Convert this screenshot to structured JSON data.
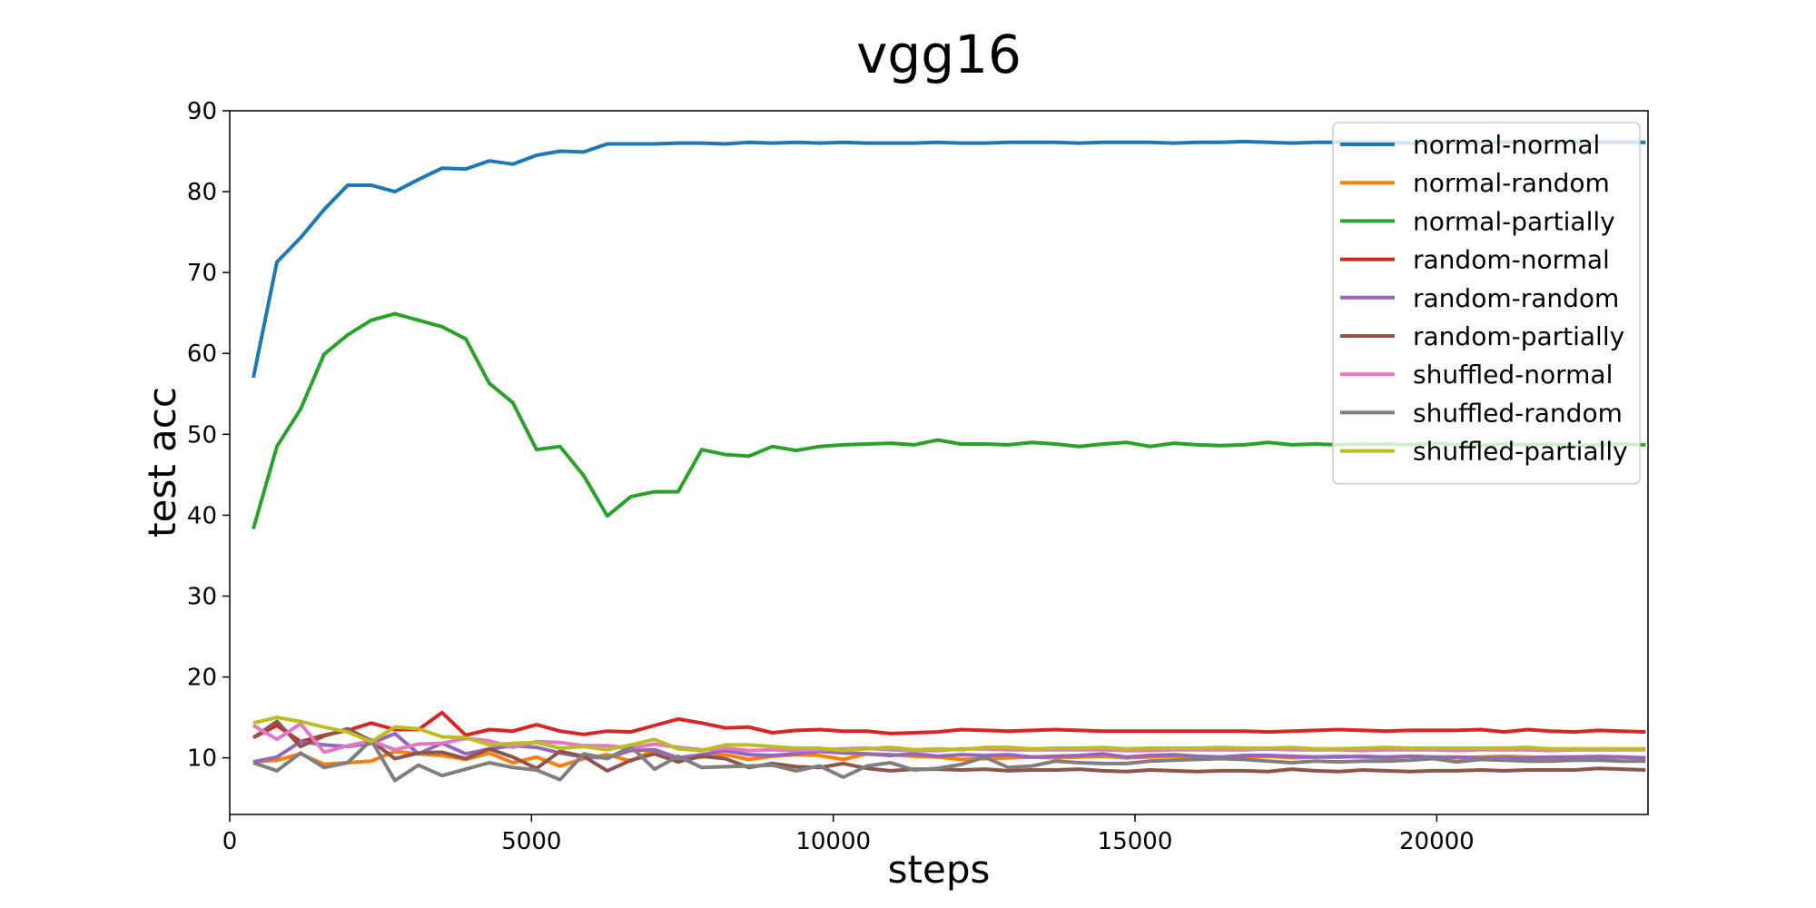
{
  "chart_data": {
    "type": "line",
    "title": "vgg16",
    "xlabel": "steps",
    "ylabel": "test acc",
    "xlim": [
      0,
      23500
    ],
    "ylim": [
      3,
      90
    ],
    "xticks": [
      0,
      5000,
      10000,
      15000,
      20000
    ],
    "yticks": [
      10,
      20,
      30,
      40,
      50,
      60,
      70,
      80,
      90
    ],
    "grid": false,
    "legend_position": "upper right",
    "x": [
      391,
      782,
      1173,
      1564,
      1955,
      2346,
      2737,
      3128,
      3519,
      3910,
      4301,
      4692,
      5083,
      5474,
      5865,
      6256,
      6647,
      7038,
      7429,
      7820,
      8211,
      8602,
      8993,
      9384,
      9775,
      10166,
      10557,
      10948,
      11339,
      11730,
      12121,
      12512,
      12903,
      13294,
      13685,
      14076,
      14467,
      14858,
      15249,
      15640,
      16031,
      16422,
      16813,
      17204,
      17595,
      17986,
      18377,
      18768,
      19159,
      19550,
      19941,
      20332,
      20723,
      21114,
      21505,
      21896,
      22287,
      22678,
      23069,
      23460
    ],
    "series": [
      {
        "name": "normal-normal",
        "color": "#1f77b4",
        "values": [
          57,
          71.3,
          74.3,
          77.8,
          80.8,
          80.8,
          80,
          81.5,
          82.9,
          82.8,
          83.8,
          83.4,
          84.5,
          85,
          84.9,
          85.9,
          85.9,
          85.9,
          86,
          86,
          85.9,
          86.1,
          86,
          86.1,
          86,
          86.1,
          86,
          86,
          86,
          86.1,
          86,
          86,
          86.1,
          86.1,
          86.1,
          86,
          86.1,
          86.1,
          86.1,
          86,
          86.1,
          86.1,
          86.2,
          86.1,
          86,
          86.1,
          86.1,
          86.1,
          86.1,
          86,
          86.1,
          86.1,
          86.1,
          86.1,
          86.1,
          86.1,
          86.1,
          86.1,
          86.1,
          86.1
        ]
      },
      {
        "name": "normal-random",
        "color": "#ff7f0e",
        "values": [
          9.5,
          9.7,
          10.5,
          9.2,
          9.4,
          9.6,
          10.8,
          10.5,
          10.3,
          9.8,
          10.6,
          9.4,
          10.1,
          9,
          9.9,
          10.4,
          9.6,
          11,
          10,
          10.1,
          10.4,
          9.8,
          10.2,
          10.4,
          10.3,
          9.8,
          10.5,
          10.4,
          10.2,
          10.1,
          9.8,
          9.9,
          10,
          10.1,
          10,
          10.1,
          10.2,
          10,
          10.1,
          10.2,
          10.1,
          10,
          10.1,
          10.2,
          10,
          10.1,
          10.2,
          10.1,
          10,
          10.2,
          10.1,
          10,
          10.1,
          10.2,
          10.1,
          10,
          10.1,
          10.2,
          10.1,
          10
        ]
      },
      {
        "name": "normal-partially",
        "color": "#2ca02c",
        "values": [
          38.3,
          48.5,
          53.1,
          59.9,
          62.3,
          64.1,
          64.9,
          64.1,
          63.3,
          61.8,
          56.3,
          53.9,
          48.1,
          48.5,
          44.9,
          39.9,
          42.3,
          42.9,
          42.9,
          48.1,
          47.5,
          47.3,
          48.5,
          48,
          48.5,
          48.7,
          48.8,
          48.9,
          48.7,
          49.3,
          48.8,
          48.8,
          48.7,
          49,
          48.8,
          48.5,
          48.8,
          49,
          48.5,
          48.9,
          48.7,
          48.6,
          48.7,
          49,
          48.7,
          48.8,
          48.7,
          48.8,
          48.8,
          48.7,
          48.9,
          48.7,
          48.6,
          48.8,
          48.7,
          48.8,
          48.6,
          48.7,
          48.8,
          48.7
        ]
      },
      {
        "name": "random-normal",
        "color": "#d62728",
        "values": [
          12.5,
          14,
          12,
          12.8,
          13.4,
          14.3,
          13.5,
          13.5,
          15.6,
          12.8,
          13.5,
          13.3,
          14.1,
          13.3,
          12.9,
          13.3,
          13.2,
          14,
          14.8,
          14.3,
          13.7,
          13.8,
          13.1,
          13.4,
          13.5,
          13.3,
          13.3,
          13,
          13.1,
          13.2,
          13.5,
          13.4,
          13.3,
          13.4,
          13.5,
          13.4,
          13.3,
          13.3,
          13.3,
          13.3,
          13.3,
          13.3,
          13.3,
          13.2,
          13.3,
          13.4,
          13.5,
          13.4,
          13.3,
          13.4,
          13.4,
          13.4,
          13.5,
          13.2,
          13.5,
          13.3,
          13.2,
          13.4,
          13.3,
          13.2
        ]
      },
      {
        "name": "random-random",
        "color": "#9467bd",
        "values": [
          9.5,
          10.1,
          12,
          11.6,
          11.4,
          11.8,
          13,
          10.5,
          11.8,
          10.5,
          11.1,
          11.5,
          11.3,
          10.6,
          10.1,
          10,
          10.9,
          11,
          10,
          10.4,
          10.9,
          10.4,
          10.3,
          10.5,
          10.8,
          10.6,
          10.5,
          10.3,
          10.5,
          10.2,
          10.4,
          10.3,
          10.4,
          10.1,
          10.2,
          10.3,
          10.5,
          10.1,
          10.3,
          10.4,
          10.2,
          10.1,
          10.3,
          10.3,
          10.2,
          10.1,
          10.1,
          10.2,
          10.1,
          10.2,
          10.1,
          10.1,
          10,
          10,
          10,
          10.1,
          10.1,
          10.1,
          10.1,
          10
        ]
      },
      {
        "name": "random-partially",
        "color": "#8c564b",
        "values": [
          12.5,
          14.5,
          11.4,
          12.7,
          13.6,
          12.1,
          9.9,
          10.6,
          10.7,
          9.9,
          11.1,
          10.1,
          8.7,
          10.8,
          10.2,
          8.4,
          9.7,
          10.5,
          9.5,
          10.2,
          9.9,
          8.8,
          9.3,
          8.9,
          8.8,
          9.3,
          8.7,
          8.4,
          8.6,
          8.6,
          8.5,
          8.6,
          8.4,
          8.5,
          8.5,
          8.6,
          8.4,
          8.3,
          8.5,
          8.4,
          8.3,
          8.4,
          8.4,
          8.3,
          8.6,
          8.4,
          8.3,
          8.5,
          8.4,
          8.3,
          8.4,
          8.4,
          8.5,
          8.4,
          8.5,
          8.5,
          8.5,
          8.7,
          8.6,
          8.5
        ]
      },
      {
        "name": "shuffled-normal",
        "color": "#e377c2",
        "values": [
          14,
          12.3,
          14.2,
          10.7,
          11.5,
          12.1,
          11,
          11.7,
          11.8,
          12.4,
          12.1,
          11.3,
          12,
          11.9,
          11.5,
          11.5,
          11.2,
          11.7,
          11.3,
          11,
          11.2,
          10.9,
          11,
          10.9,
          11,
          11.1,
          11.2,
          11,
          10.9,
          10.9,
          11.1,
          11.1,
          11,
          11,
          11,
          11,
          11,
          10.9,
          10.9,
          11,
          11,
          11,
          11,
          11.1,
          11,
          11,
          11,
          10.9,
          11,
          11,
          11,
          10.9,
          11,
          11,
          11,
          10.9,
          11,
          11,
          11,
          11
        ]
      },
      {
        "name": "shuffled-random",
        "color": "#7f7f7f",
        "values": [
          9.4,
          8.4,
          10.6,
          8.8,
          9.4,
          12.2,
          7.2,
          9.1,
          7.8,
          8.6,
          9.4,
          8.8,
          8.5,
          7.3,
          10.5,
          9.9,
          11.4,
          8.6,
          10.2,
          8.8,
          8.9,
          9,
          9.1,
          8.4,
          9,
          7.6,
          9,
          9.4,
          8.5,
          8.7,
          9.2,
          10.1,
          8.8,
          9,
          9.6,
          9.4,
          9.3,
          9.3,
          9.6,
          9.7,
          9.8,
          9.9,
          9.8,
          9.6,
          9.4,
          9.6,
          9.5,
          9.6,
          9.6,
          9.7,
          9.9,
          9.5,
          9.8,
          9.7,
          9.6,
          9.6,
          9.7,
          9.7,
          9.6,
          9.6
        ]
      },
      {
        "name": "shuffled-partially",
        "color": "#bcbd22",
        "values": [
          14.3,
          15,
          14.5,
          13.8,
          13.2,
          12,
          13.8,
          13.6,
          12.6,
          12.5,
          11.6,
          11.8,
          11.9,
          11.2,
          11.4,
          11,
          11.6,
          12.3,
          11.1,
          10.9,
          11.6,
          11.6,
          11.4,
          11.2,
          11.2,
          10.9,
          11.1,
          11.3,
          11,
          11.1,
          11,
          11.3,
          11.3,
          11.1,
          11.2,
          11.2,
          11.3,
          11.1,
          11.2,
          11.2,
          11.2,
          11.3,
          11.2,
          11.2,
          11.3,
          11.1,
          11.1,
          11.2,
          11.3,
          11.2,
          11.2,
          11.2,
          11.2,
          11.2,
          11.3,
          11.1,
          11.1,
          11.1,
          11.1,
          11.1
        ]
      }
    ]
  }
}
